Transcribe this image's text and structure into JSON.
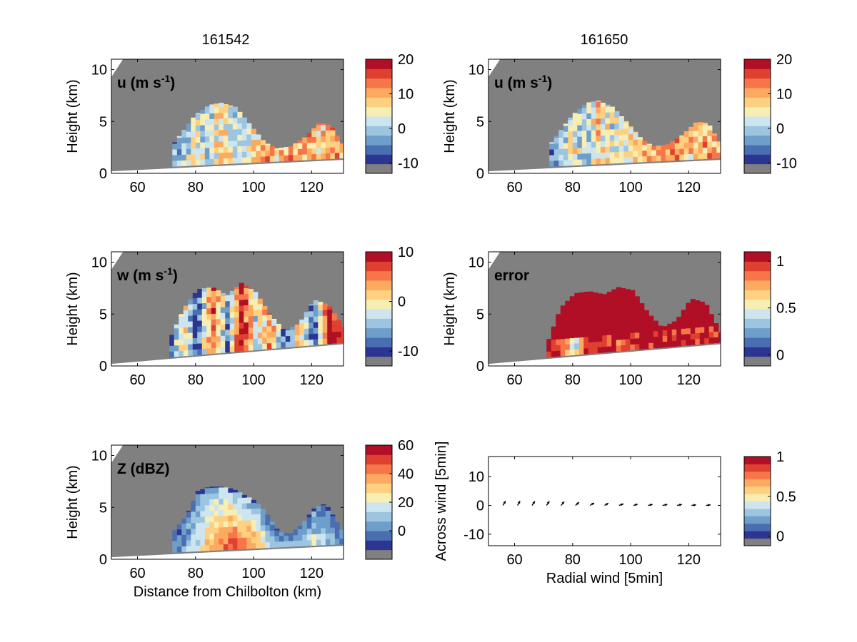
{
  "figure": {
    "titles": [
      "161542",
      "161650"
    ],
    "gray_color": "#808080",
    "colormap": [
      "#2d3593",
      "#4a6fb1",
      "#6e9fcb",
      "#9ec5e0",
      "#cde5ef",
      "#f7eeb4",
      "#fed07f",
      "#fcaa60",
      "#f6764a",
      "#df402f",
      "#b00f26"
    ]
  },
  "chart_data": [
    {
      "type": "heatmap",
      "label_main": "u (m s",
      "label_sup": "-1",
      "label_close": ")",
      "ylabel": "Height (km)",
      "xlabel": "",
      "xlim": [
        51,
        131
      ],
      "ylim": [
        0,
        11
      ],
      "x_ticks": [
        "60",
        "80",
        "100",
        "120"
      ],
      "y_ticks": [
        "0",
        "5",
        "10"
      ],
      "colorbar": {
        "range": [
          -13,
          20
        ],
        "ticks": [
          "-10",
          "0",
          "10",
          "20"
        ]
      },
      "cloud": {
        "x": [
          72,
          79,
          84,
          88,
          93,
          98,
          103,
          107,
          112,
          117,
          122,
          126,
          131
        ],
        "top": [
          3,
          5.6,
          6.6,
          6.8,
          6.4,
          4.7,
          3,
          2.4,
          2.6,
          3.5,
          4.9,
          4.6,
          2.2
        ]
      },
      "mean_colors": [
        2,
        5,
        3,
        6,
        4,
        5,
        7,
        6,
        7,
        7,
        6,
        7,
        7
      ]
    },
    {
      "type": "heatmap",
      "label_main": "u (m s",
      "label_sup": "-1",
      "label_close": ")",
      "ylabel": "Height (km)",
      "xlabel": "",
      "xlim": [
        51,
        131
      ],
      "ylim": [
        0,
        11
      ],
      "x_ticks": [
        "60",
        "80",
        "100",
        "120"
      ],
      "y_ticks": [
        "0",
        "5",
        "10"
      ],
      "colorbar": {
        "range": [
          -13,
          20
        ],
        "ticks": [
          "-10",
          "0",
          "10",
          "20"
        ]
      },
      "cloud": {
        "x": [
          72,
          79,
          84,
          88,
          93,
          98,
          103,
          107,
          112,
          117,
          122,
          126,
          131
        ],
        "top": [
          3,
          5.6,
          6.8,
          7,
          6.4,
          4.9,
          3.3,
          2.6,
          2.8,
          3.7,
          5,
          4.8,
          2.4
        ]
      },
      "mean_colors": [
        2,
        5,
        3,
        6,
        4,
        5,
        7,
        6,
        7,
        7,
        6,
        7,
        7
      ]
    },
    {
      "type": "heatmap",
      "label_main": "w (m s",
      "label_sup": "-1",
      "label_close": ")",
      "ylabel": "Height (km)",
      "xlabel": "",
      "xlim": [
        51,
        131
      ],
      "ylim": [
        0,
        11
      ],
      "x_ticks": [
        "60",
        "80",
        "100",
        "120"
      ],
      "y_ticks": [
        "0",
        "5",
        "10"
      ],
      "colorbar": {
        "range": [
          -13,
          10
        ],
        "ticks": [
          "-10",
          "0",
          "10"
        ]
      },
      "cloud": {
        "x": [
          71,
          75,
          80,
          85,
          90,
          95,
          100,
          105,
          110,
          115,
          120,
          125,
          131
        ],
        "top": [
          3,
          5.5,
          7.4,
          7.6,
          6.8,
          8,
          7.1,
          4.9,
          3.4,
          4.1,
          6.4,
          5.9,
          3.4
        ]
      },
      "mean_colors": [
        1,
        6,
        0,
        9,
        2,
        10,
        4,
        8,
        0,
        6,
        1,
        10,
        9
      ]
    },
    {
      "type": "heatmap",
      "label_main": "error",
      "label_sup": "",
      "label_close": "",
      "ylabel": "Height (km)",
      "xlabel": "",
      "xlim": [
        51,
        131
      ],
      "ylim": [
        0,
        11
      ],
      "x_ticks": [
        "60",
        "80",
        "100",
        "120"
      ],
      "y_ticks": [
        "0",
        "5",
        "10"
      ],
      "colorbar": {
        "range": [
          -0.12,
          1.1
        ],
        "ticks": [
          "0",
          "0.5",
          "1"
        ]
      },
      "cloud": {
        "x": [
          71,
          75,
          80,
          85,
          90,
          95,
          100,
          105,
          110,
          115,
          120,
          125,
          131
        ],
        "top": [
          2.6,
          5.6,
          7,
          7.2,
          6.9,
          7.6,
          7.3,
          5.2,
          3.7,
          4.4,
          6.5,
          6.1,
          2.8
        ]
      },
      "mean_colors": [
        10,
        10,
        4,
        10,
        10,
        9,
        10,
        10,
        10,
        9,
        10,
        9,
        10
      ]
    },
    {
      "type": "heatmap",
      "label_main": "Z (dBZ)",
      "label_sup": "",
      "label_close": "",
      "ylabel": "Height (km)",
      "xlabel": "Distance from Chilbolton (km)",
      "xlim": [
        51,
        131
      ],
      "ylim": [
        0,
        11
      ],
      "x_ticks": [
        "60",
        "80",
        "100",
        "120"
      ],
      "y_ticks": [
        "0",
        "5",
        "10"
      ],
      "colorbar": {
        "range": [
          -20,
          60
        ],
        "ticks": [
          "0",
          "20",
          "40",
          "60"
        ]
      },
      "cloud": {
        "x": [
          72,
          76,
          80,
          84,
          88,
          92,
          96,
          100,
          104,
          108,
          112,
          116,
          120,
          124,
          131
        ],
        "top": [
          2.8,
          4.2,
          6.6,
          7,
          7,
          6.8,
          6.2,
          5.6,
          4.3,
          2.6,
          2.5,
          3.4,
          4.9,
          5.4,
          2.2
        ]
      },
      "mean_colors": [
        1,
        3,
        4,
        7,
        8,
        9,
        8,
        7,
        4,
        3,
        2,
        3,
        4,
        3,
        2
      ]
    },
    {
      "type": "quiver",
      "ylabel": "Across wind [5min]",
      "xlabel": "Radial wind [5min]",
      "xlim": [
        51,
        131
      ],
      "ylim": [
        -14,
        17
      ],
      "x_ticks": [
        "60",
        "80",
        "100",
        "120"
      ],
      "y_ticks": [
        "-10",
        "0",
        "10"
      ],
      "colorbar": {
        "range": [
          -0.12,
          1
        ],
        "ticks": [
          "0",
          "0.5",
          "1"
        ]
      },
      "arrows": {
        "x": [
          56,
          61,
          66,
          71,
          76,
          81,
          86,
          91,
          96,
          101,
          106,
          111,
          116,
          121,
          126,
          131
        ],
        "dx": [
          0.8,
          0.8,
          0.9,
          0.9,
          1.0,
          1.1,
          1.3,
          1.2,
          1.4,
          1.3,
          1.4,
          1.5,
          1.5,
          1.4,
          1.4,
          1.3
        ],
        "dy": [
          1.4,
          1.4,
          1.3,
          1.3,
          1.2,
          1.0,
          0.8,
          0.7,
          0.5,
          0.4,
          0.3,
          0.3,
          0.3,
          0.2,
          0.2,
          0.1
        ]
      }
    }
  ]
}
